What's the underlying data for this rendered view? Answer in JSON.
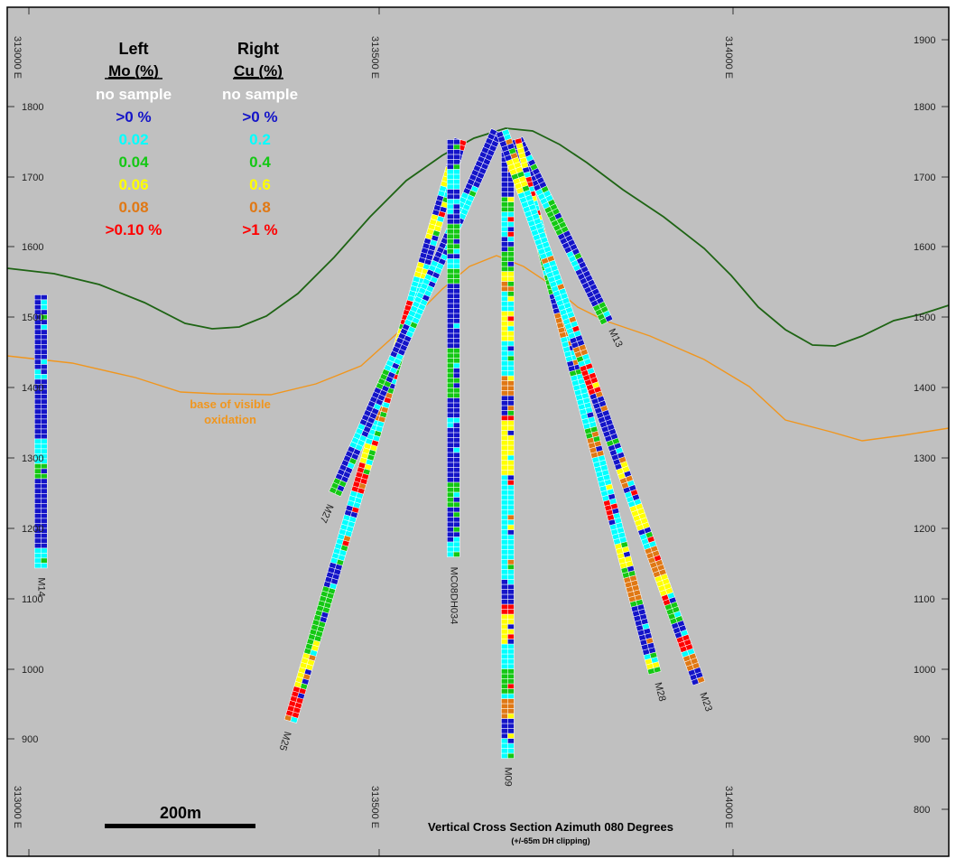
{
  "elevation_ticks": [
    "1900",
    "1800",
    "1700",
    "1600",
    "1500",
    "1400",
    "1300",
    "1200",
    "1100",
    "1000",
    "900",
    "800"
  ],
  "easting_ticks": [
    "313000 E",
    "313500 E",
    "314000 E"
  ],
  "legend": {
    "left_head": "Left",
    "left_sub": "Mo (%)",
    "right_head": "Right",
    "right_sub": "Cu (%)",
    "left_items": [
      "no sample",
      ">0 %",
      "0.02",
      "0.04",
      "0.06",
      "0.08",
      ">0.10 %"
    ],
    "right_items": [
      "no sample",
      ">0 %",
      "0.2",
      "0.4",
      "0.6",
      "0.8",
      ">1 %"
    ],
    "colors": [
      "#ffffff",
      "#1414c8",
      "#00ffff",
      "#14c814",
      "#ffff00",
      "#e07814",
      "#ff0000"
    ]
  },
  "annotation": {
    "line1": "base of visible",
    "line2": "oxidation"
  },
  "title": "Vertical Cross Section Azimuth 080 Degrees",
  "subtitle": "(+/-65m DH clipping)",
  "scale_bar": "200m",
  "colors": {
    "background": "#c0c0c0",
    "topography": "#1e6414",
    "oxidation": "#f0961e",
    "blue": "#1414c8",
    "cyan": "#00ffff",
    "green": "#14c814",
    "yellow": "#ffff00",
    "orange": "#e07814",
    "red": "#ff0000"
  },
  "drillholes": [
    {
      "name": "M14",
      "collar": [
        313017,
        1532
      ],
      "toe": [
        313017,
        1140
      ],
      "mix": "low"
    },
    {
      "name": "M25",
      "collar": [
        313613,
        1753
      ],
      "toe": [
        313370,
        920
      ],
      "mix": "mixed"
    },
    {
      "name": "M27",
      "collar": [
        313665,
        1765
      ],
      "toe": [
        313432,
        1243
      ],
      "mix": "low"
    },
    {
      "name": "MC08DH034",
      "collar": [
        313603,
        1753
      ],
      "toe": [
        313603,
        1155
      ],
      "mix": "low"
    },
    {
      "name": "M09",
      "collar": [
        313680,
        1742
      ],
      "toe": [
        313680,
        870
      ],
      "mix": "high"
    },
    {
      "name": "M13",
      "collar": [
        313693,
        1753
      ],
      "toe": [
        313822,
        1492
      ],
      "mix": "low"
    },
    {
      "name": "M28",
      "collar": [
        313690,
        1753
      ],
      "toe": [
        313890,
        990
      ],
      "mix": "mixed"
    },
    {
      "name": "M23",
      "collar": [
        313672,
        1765
      ],
      "toe": [
        313953,
        975
      ],
      "mix": "mixed"
    }
  ]
}
